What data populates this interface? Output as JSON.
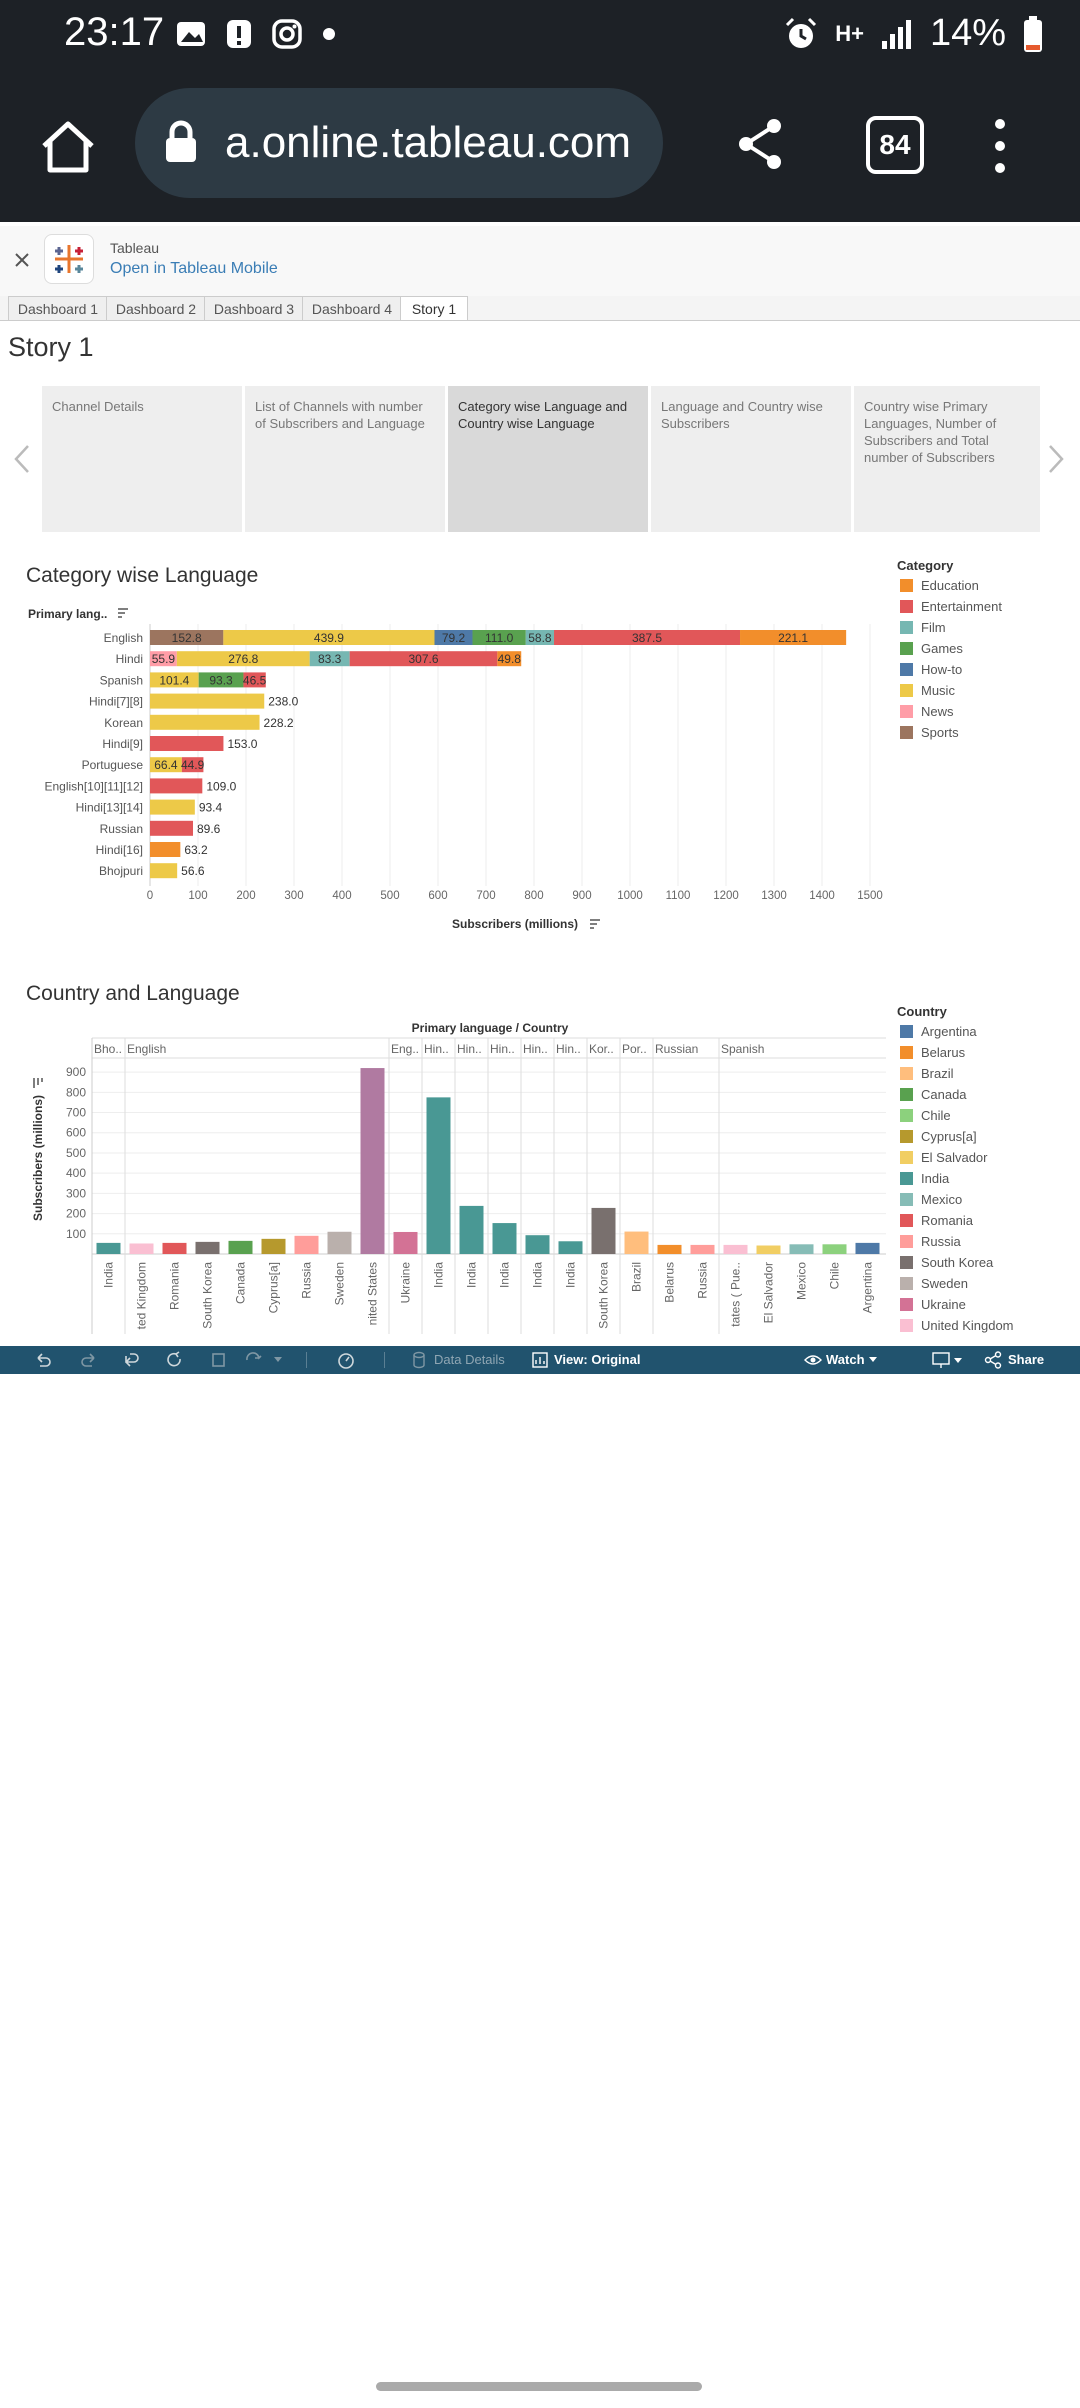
{
  "status": {
    "time": "23:17",
    "battery": "14%",
    "network": "H+"
  },
  "browser": {
    "url": "a.online.tableau.com",
    "tab_count": "84"
  },
  "banner": {
    "app_name": "Tableau",
    "open_link": "Open in Tableau Mobile"
  },
  "tabs": [
    "Dashboard 1",
    "Dashboard 2",
    "Dashboard 3",
    "Dashboard 4",
    "Story 1"
  ],
  "story": {
    "title": "Story 1",
    "points": [
      "Channel Details",
      "List of Channels with number of Subscribers and Language",
      "Category wise Language and Country wise Language",
      "Language and Country wise Subscribers",
      "Country wise Primary Languages, Number of Subscribers and Total number of Subscribers"
    ]
  },
  "chart1_title": "Category wise Language",
  "chart2_title": "Country and Language",
  "legend1": {
    "title": "Category",
    "items": [
      {
        "name": "Education",
        "color": "#f28e2b"
      },
      {
        "name": "Entertainment",
        "color": "#e15759"
      },
      {
        "name": "Film",
        "color": "#76b7b2"
      },
      {
        "name": "Games",
        "color": "#59a14f"
      },
      {
        "name": "How-to",
        "color": "#4e79a7"
      },
      {
        "name": "Music",
        "color": "#edc948"
      },
      {
        "name": "News",
        "color": "#ff9da7"
      },
      {
        "name": "Sports",
        "color": "#9c755f"
      }
    ]
  },
  "legend2": {
    "title": "Country",
    "items": [
      {
        "name": "Argentina",
        "color": "#4e79a7"
      },
      {
        "name": "Belarus",
        "color": "#f28e2b"
      },
      {
        "name": "Brazil",
        "color": "#ffbe7d"
      },
      {
        "name": "Canada",
        "color": "#59a14f"
      },
      {
        "name": "Chile",
        "color": "#8cd17d"
      },
      {
        "name": "Cyprus[a]",
        "color": "#b6992d"
      },
      {
        "name": "El Salvador",
        "color": "#f1ce63"
      },
      {
        "name": "India",
        "color": "#499894"
      },
      {
        "name": "Mexico",
        "color": "#86bcb6"
      },
      {
        "name": "Romania",
        "color": "#e15759"
      },
      {
        "name": "Russia",
        "color": "#ff9d9a"
      },
      {
        "name": "South Korea",
        "color": "#79706e"
      },
      {
        "name": "Sweden",
        "color": "#bab0ac"
      },
      {
        "name": "Ukraine",
        "color": "#d37295"
      },
      {
        "name": "United Kingdom",
        "color": "#fabfd2"
      }
    ]
  },
  "chart_data": [
    {
      "type": "bar",
      "orientation": "horizontal-stacked",
      "title": "Category wise Language",
      "ylabel": "Primary lang..",
      "xlabel": "Subscribers (millions)",
      "xlim": [
        0,
        1500
      ],
      "xticks": [
        0,
        100,
        200,
        300,
        400,
        500,
        600,
        700,
        800,
        900,
        1000,
        1100,
        1200,
        1300,
        1400,
        1500
      ],
      "categories": [
        "English",
        "Hindi",
        "Spanish",
        "Hindi[7][8]",
        "Korean",
        "Hindi[9]",
        "Portuguese",
        "English[10][11][12]",
        "Hindi[13][14]",
        "Russian",
        "Hindi[16]",
        "Bhojpuri"
      ],
      "segments": [
        [
          {
            "cat": "Sports",
            "v": 152.8
          },
          {
            "cat": "Music",
            "v": 439.9
          },
          {
            "cat": "How-to",
            "v": 79.2
          },
          {
            "cat": "Games",
            "v": 111.0
          },
          {
            "cat": "Film",
            "v": 58.8
          },
          {
            "cat": "Entertainment",
            "v": 387.5
          },
          {
            "cat": "Education",
            "v": 221.1
          }
        ],
        [
          {
            "cat": "News",
            "v": 55.9
          },
          {
            "cat": "Music",
            "v": 276.8
          },
          {
            "cat": "Film",
            "v": 83.3
          },
          {
            "cat": "Entertainment",
            "v": 307.6
          },
          {
            "cat": "Education",
            "v": 49.8
          }
        ],
        [
          {
            "cat": "Music",
            "v": 101.4
          },
          {
            "cat": "Games",
            "v": 93.3
          },
          {
            "cat": "Entertainment",
            "v": 46.5
          }
        ],
        [
          {
            "cat": "Music",
            "v": 238.0
          }
        ],
        [
          {
            "cat": "Music",
            "v": 228.2
          }
        ],
        [
          {
            "cat": "Entertainment",
            "v": 153.0
          }
        ],
        [
          {
            "cat": "Music",
            "v": 66.4
          },
          {
            "cat": "Entertainment",
            "v": 44.9
          }
        ],
        [
          {
            "cat": "Entertainment",
            "v": 109.0
          }
        ],
        [
          {
            "cat": "Music",
            "v": 93.4
          }
        ],
        [
          {
            "cat": "Entertainment",
            "v": 89.6
          }
        ],
        [
          {
            "cat": "Education",
            "v": 63.2
          }
        ],
        [
          {
            "cat": "Music",
            "v": 56.6
          }
        ]
      ]
    },
    {
      "type": "bar",
      "title": "Country and Language",
      "header": "Primary language / Country",
      "ylabel": "Subscribers (millions)",
      "ylim": [
        0,
        950
      ],
      "yticks": [
        100,
        200,
        300,
        400,
        500,
        600,
        700,
        800,
        900
      ],
      "groups": [
        {
          "label": "Bho..",
          "bars": [
            {
              "country": "India",
              "v": 55
            }
          ]
        },
        {
          "label": "English",
          "bars": [
            {
              "country": "ted Kingdom",
              "c": "United Kingdom",
              "v": 52
            },
            {
              "country": "Romania",
              "v": 55
            },
            {
              "country": "South Korea",
              "v": 60
            },
            {
              "country": "Canada",
              "v": 65
            },
            {
              "country": "Cyprus[a]",
              "v": 75
            },
            {
              "country": "Russia",
              "v": 90
            },
            {
              "country": "Sweden",
              "v": 110
            },
            {
              "country": "nited States",
              "c": "Ukraine",
              "v": 920
            }
          ]
        },
        {
          "label": "Eng..",
          "bars": [
            {
              "country": "Ukraine",
              "v": 109
            }
          ]
        },
        {
          "label": "Hin..",
          "bars": [
            {
              "country": "India",
              "v": 775
            }
          ]
        },
        {
          "label": "Hin..",
          "bars": [
            {
              "country": "India",
              "v": 238
            }
          ]
        },
        {
          "label": "Hin..",
          "bars": [
            {
              "country": "India",
              "v": 153
            }
          ]
        },
        {
          "label": "Hin..",
          "bars": [
            {
              "country": "India",
              "v": 93
            }
          ]
        },
        {
          "label": "Hin..",
          "bars": [
            {
              "country": "India",
              "v": 63
            }
          ]
        },
        {
          "label": "Kor..",
          "bars": [
            {
              "country": "South Korea",
              "v": 228
            }
          ]
        },
        {
          "label": "Por..",
          "bars": [
            {
              "country": "Brazil",
              "v": 111
            }
          ]
        },
        {
          "label": "Russian",
          "bars": [
            {
              "country": "Belarus",
              "v": 45
            },
            {
              "country": "Russia",
              "v": 45
            }
          ]
        },
        {
          "label": "Spanish",
          "bars": [
            {
              "country": "tates ( Pue..",
              "c": "United Kingdom",
              "v": 45
            },
            {
              "country": "El Salvador",
              "v": 42
            },
            {
              "country": "Mexico",
              "v": 48
            },
            {
              "country": "Chile",
              "v": 48
            },
            {
              "country": "Argentina",
              "v": 55
            }
          ]
        }
      ]
    }
  ],
  "toolbar": {
    "data_details": "Data Details",
    "view": "View: Original",
    "watch": "Watch",
    "share": "Share"
  }
}
